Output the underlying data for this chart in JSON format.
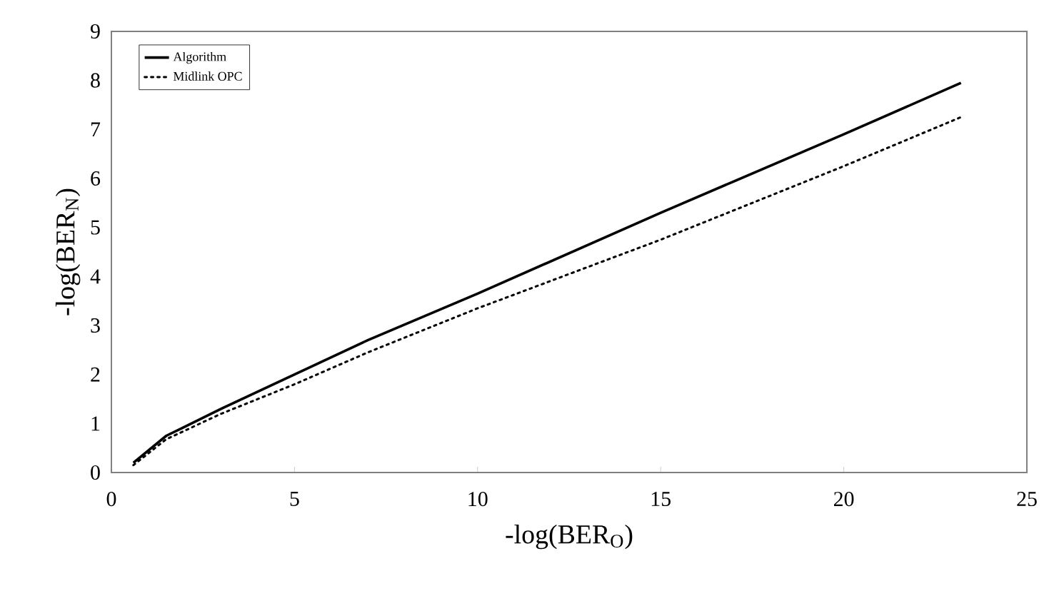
{
  "chart_data": {
    "type": "line",
    "xlabel": "-log(BER$_{O}$)",
    "ylabel": "-log(BER$_{N}$)",
    "xlim": [
      0,
      25
    ],
    "ylim": [
      0,
      9
    ],
    "xticks": [
      0,
      5,
      10,
      15,
      20,
      25
    ],
    "yticks": [
      0,
      1,
      2,
      3,
      4,
      5,
      6,
      7,
      8,
      9
    ],
    "grid": false,
    "legend": "top left",
    "marker": "none",
    "series": [
      {
        "name": "Algorithm",
        "color": "#000000",
        "line_style": "solid",
        "x": [
          0.6,
          1.5,
          3,
          5,
          7,
          10,
          15,
          20,
          23.2
        ],
        "values": [
          0.2,
          0.75,
          1.3,
          2.0,
          2.7,
          3.65,
          5.3,
          6.9,
          7.95
        ]
      },
      {
        "name": "Midlink OPC",
        "color": "#000000",
        "line_style": "dotted",
        "x": [
          0.6,
          1.5,
          3,
          5,
          7,
          10,
          15,
          20,
          23.2
        ],
        "values": [
          0.15,
          0.68,
          1.2,
          1.8,
          2.45,
          3.35,
          4.75,
          6.25,
          7.25
        ]
      }
    ]
  }
}
